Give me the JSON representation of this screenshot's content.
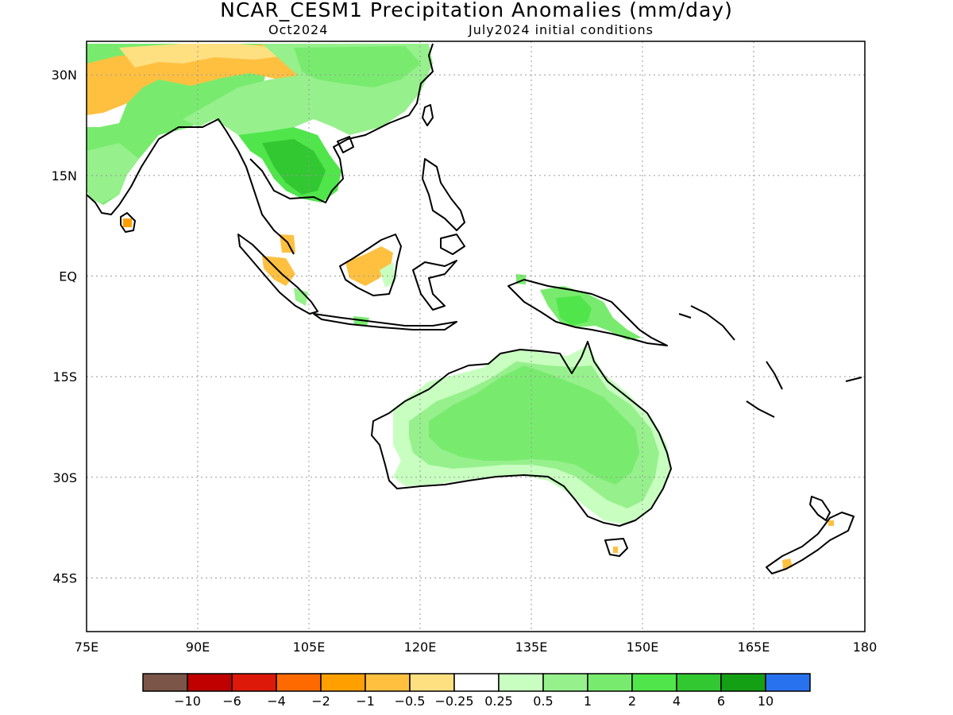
{
  "title": "NCAR_CESM1 Precipitation Anomalies (mm/day)",
  "valid_month": "Oct2024",
  "init_conditions": "July2024 initial conditions",
  "lat_labels": [
    "30N",
    "15N",
    "EQ",
    "15S",
    "30S",
    "45S"
  ],
  "lon_labels": [
    "75E",
    "90E",
    "105E",
    "120E",
    "135E",
    "150E",
    "165E",
    "180"
  ],
  "colorbar": {
    "colors": [
      "#7a5548",
      "#c00000",
      "#dd1a0a",
      "#ff6a00",
      "#ffa000",
      "#ffc040",
      "#ffe080",
      "#ffffff",
      "#c8ffc0",
      "#96f08c",
      "#78eb6e",
      "#50e64b",
      "#32c832",
      "#14a014",
      "#2872f0"
    ],
    "labels": [
      "-10",
      "-6",
      "-4",
      "-2",
      "-1",
      "-0.5",
      "-0.25",
      "0.25",
      "0.5",
      "1",
      "2",
      "4",
      "6",
      "10"
    ]
  },
  "map": {
    "region": "Asia-Pacific / Maritime Continent / Australia",
    "lon_range": [
      75,
      180
    ],
    "lat_range": [
      -53,
      35
    ],
    "anomaly_areas": [
      {
        "region": "Tibetan Plateau",
        "category": "-1"
      },
      {
        "region": "Northern India",
        "category": "-1"
      },
      {
        "region": "Indian subcontinent",
        "category": "1"
      },
      {
        "region": "Southeast Asia / Indochina",
        "category": "2"
      },
      {
        "region": "Southern China",
        "category": "1"
      },
      {
        "region": "Sumatra",
        "category": "-1"
      },
      {
        "region": "Borneo",
        "category": "-1"
      },
      {
        "region": "New Guinea",
        "category": "2"
      },
      {
        "region": "Australia interior",
        "category": "1"
      },
      {
        "region": "Eastern Australia",
        "category": "0.5"
      },
      {
        "region": "New Zealand South Island",
        "category": "-1"
      }
    ]
  }
}
